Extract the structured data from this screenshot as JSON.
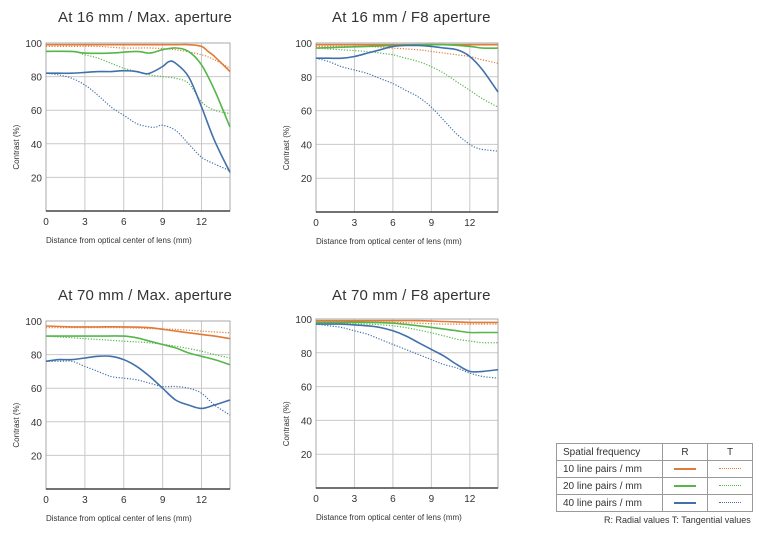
{
  "chart_data": [
    {
      "type": "line",
      "title": "At 16 mm / Max. aperture",
      "xlabel": "Distance from optical center of lens (mm)",
      "ylabel": "Contrast (%)",
      "xlim": [
        0,
        14.2
      ],
      "ylim": [
        0,
        100
      ],
      "xticks": [
        0,
        3,
        6,
        9,
        12
      ],
      "yticks": [
        20,
        40,
        60,
        80,
        100
      ],
      "series": [
        {
          "name": "10 line pairs / mm R",
          "color": "#e07b39",
          "style": "solid",
          "x": [
            0,
            2,
            4,
            6,
            8,
            10,
            11,
            12,
            12.5,
            13,
            14.2
          ],
          "y": [
            99,
            99,
            99,
            99,
            99,
            99,
            99,
            98,
            95,
            92,
            83
          ]
        },
        {
          "name": "10 line pairs / mm T",
          "color": "#e07b39",
          "style": "dotted",
          "x": [
            0,
            2,
            4,
            6,
            8,
            10,
            12,
            13,
            14.2
          ],
          "y": [
            98,
            98,
            98,
            97,
            97,
            96,
            93,
            90,
            85
          ]
        },
        {
          "name": "20 line pairs / mm R",
          "color": "#55b64a",
          "style": "solid",
          "x": [
            0,
            2,
            3,
            5,
            7,
            8,
            9,
            10,
            11,
            12,
            13,
            14.2
          ],
          "y": [
            95,
            95,
            94,
            94,
            95,
            94,
            96,
            97,
            95,
            87,
            72,
            50
          ]
        },
        {
          "name": "20 line pairs / mm T",
          "color": "#55b64a",
          "style": "dotted",
          "x": [
            0,
            2,
            3,
            4,
            5,
            6,
            7,
            8,
            9,
            10,
            11,
            12,
            13,
            14.2
          ],
          "y": [
            95,
            95,
            93,
            91,
            88,
            85,
            83,
            81,
            80,
            79,
            76,
            65,
            60,
            58
          ]
        },
        {
          "name": "40 line pairs / mm R",
          "color": "#4270ab",
          "style": "solid",
          "x": [
            0,
            1,
            2,
            3,
            4,
            5,
            6,
            7,
            7.5,
            8,
            9,
            9.5,
            10,
            11,
            12,
            13,
            14.2
          ],
          "y": [
            82,
            82,
            82,
            82.5,
            83,
            83,
            83.5,
            83,
            82,
            82,
            86,
            89,
            88,
            80,
            62,
            42,
            23
          ]
        },
        {
          "name": "40 line pairs / mm T",
          "color": "#4270ab",
          "style": "dotted",
          "x": [
            0,
            1,
            2,
            3,
            4,
            5,
            6,
            7,
            8,
            8.5,
            9,
            10,
            11,
            12,
            13,
            14.2
          ],
          "y": [
            82,
            81,
            79,
            75,
            69,
            62,
            57,
            52,
            50,
            50,
            51,
            48,
            40,
            32,
            28,
            24
          ]
        }
      ]
    },
    {
      "type": "line",
      "title": "At 16 mm / F8 aperture",
      "xlabel": "Distance from optical center of lens (mm)",
      "ylabel": "Contrast (%)",
      "xlim": [
        0,
        14.2
      ],
      "ylim": [
        0,
        100
      ],
      "xticks": [
        0,
        3,
        6,
        9,
        12
      ],
      "yticks": [
        20,
        40,
        60,
        80,
        100
      ],
      "series": [
        {
          "name": "10 line pairs / mm R",
          "color": "#e07b39",
          "style": "solid",
          "x": [
            0,
            2,
            4,
            6,
            8,
            10,
            12,
            13,
            14.2
          ],
          "y": [
            99,
            99,
            99,
            99,
            99,
            99,
            99,
            99,
            99
          ]
        },
        {
          "name": "10 line pairs / mm T",
          "color": "#e07b39",
          "style": "dotted",
          "x": [
            0,
            2,
            4,
            6,
            8,
            9,
            10,
            11,
            12,
            13,
            14.2
          ],
          "y": [
            98,
            98,
            98,
            97,
            96,
            95,
            94,
            93,
            92,
            90,
            88
          ]
        },
        {
          "name": "20 line pairs / mm R",
          "color": "#55b64a",
          "style": "solid",
          "x": [
            0,
            2,
            4,
            6,
            8,
            10,
            12,
            13,
            14.2
          ],
          "y": [
            97,
            97.5,
            98,
            98.5,
            99,
            99,
            98,
            97,
            97
          ]
        },
        {
          "name": "20 line pairs / mm T",
          "color": "#55b64a",
          "style": "dotted",
          "x": [
            0,
            2,
            4,
            5,
            6,
            7,
            8,
            9,
            10,
            11,
            12,
            13,
            14.2
          ],
          "y": [
            97,
            96,
            95,
            94,
            93,
            91,
            89,
            86,
            82,
            77,
            72,
            67,
            62
          ]
        },
        {
          "name": "40 line pairs / mm R",
          "color": "#4270ab",
          "style": "solid",
          "x": [
            0,
            1,
            2,
            3,
            4,
            5,
            6,
            7,
            8,
            9,
            10,
            11,
            12,
            13,
            14.2
          ],
          "y": [
            91,
            91,
            91,
            92,
            94,
            96,
            98,
            98.5,
            98.5,
            98,
            97,
            96,
            92,
            84,
            71
          ]
        },
        {
          "name": "40 line pairs / mm T",
          "color": "#4270ab",
          "style": "dotted",
          "x": [
            0,
            1,
            2,
            3,
            4,
            5,
            6,
            7,
            8,
            9,
            10,
            11,
            12,
            12.5,
            13,
            14.2
          ],
          "y": [
            91,
            89,
            86,
            84,
            82,
            79,
            76,
            72,
            68,
            62,
            54,
            46,
            40,
            38,
            37,
            36
          ]
        }
      ]
    },
    {
      "type": "line",
      "title": "At 70 mm / Max. aperture",
      "xlabel": "Distance from optical center of lens (mm)",
      "ylabel": "Contrast (%)",
      "xlim": [
        0,
        14.2
      ],
      "ylim": [
        0,
        100
      ],
      "xticks": [
        0,
        3,
        6,
        9,
        12
      ],
      "yticks": [
        20,
        40,
        60,
        80,
        100
      ],
      "series": [
        {
          "name": "10 line pairs / mm R",
          "color": "#e07b39",
          "style": "solid",
          "x": [
            0,
            2,
            4,
            6,
            8,
            10,
            12,
            13,
            14.2
          ],
          "y": [
            97,
            96.5,
            96.5,
            96.5,
            96,
            94,
            92,
            91,
            89.5
          ]
        },
        {
          "name": "10 line pairs / mm T",
          "color": "#e07b39",
          "style": "dotted",
          "x": [
            0,
            2,
            4,
            6,
            8,
            10,
            12,
            13,
            14.2
          ],
          "y": [
            96,
            96,
            96,
            96,
            95.5,
            95,
            94,
            93.5,
            93
          ]
        },
        {
          "name": "20 line pairs / mm R",
          "color": "#55b64a",
          "style": "solid",
          "x": [
            0,
            2,
            4,
            6,
            7,
            8,
            9,
            10,
            11,
            12,
            13,
            14.2
          ],
          "y": [
            91,
            91,
            91,
            91,
            90,
            88,
            86,
            84,
            81,
            79,
            77,
            74
          ]
        },
        {
          "name": "20 line pairs / mm T",
          "color": "#55b64a",
          "style": "dotted",
          "x": [
            0,
            2,
            4,
            6,
            8,
            10,
            12,
            13,
            14.2
          ],
          "y": [
            91,
            90,
            89,
            88,
            87,
            85,
            82,
            80,
            78
          ]
        },
        {
          "name": "40 line pairs / mm R",
          "color": "#4270ab",
          "style": "solid",
          "x": [
            0,
            1,
            2,
            3,
            4,
            5,
            6,
            7,
            8,
            9,
            10,
            11,
            12,
            13,
            14.2
          ],
          "y": [
            76,
            77,
            77,
            78,
            79,
            79,
            77,
            73,
            67,
            60,
            53,
            50,
            48,
            50,
            53
          ]
        },
        {
          "name": "40 line pairs / mm T",
          "color": "#4270ab",
          "style": "dotted",
          "x": [
            0,
            1,
            2,
            3,
            4,
            5,
            6,
            7,
            8,
            9,
            10,
            11,
            12,
            13,
            14.2
          ],
          "y": [
            76,
            76,
            76,
            73,
            70,
            67,
            66,
            65,
            63,
            61,
            61,
            60,
            57,
            50,
            44
          ]
        }
      ]
    },
    {
      "type": "line",
      "title": "At 70 mm / F8 aperture",
      "xlabel": "Distance from optical center of lens (mm)",
      "ylabel": "Contrast (%)",
      "xlim": [
        0,
        14.2
      ],
      "ylim": [
        0,
        100
      ],
      "xticks": [
        0,
        3,
        6,
        9,
        12
      ],
      "yticks": [
        20,
        40,
        60,
        80,
        100
      ],
      "series": [
        {
          "name": "10 line pairs / mm R",
          "color": "#e07b39",
          "style": "solid",
          "x": [
            0,
            2,
            4,
            6,
            8,
            10,
            12,
            13,
            14.2
          ],
          "y": [
            99,
            99,
            99,
            99,
            99,
            98.5,
            98,
            98,
            98
          ]
        },
        {
          "name": "10 line pairs / mm T",
          "color": "#e07b39",
          "style": "dotted",
          "x": [
            0,
            2,
            4,
            6,
            8,
            10,
            12,
            13,
            14.2
          ],
          "y": [
            99,
            98.5,
            98,
            98,
            97.5,
            97,
            97,
            97,
            97
          ]
        },
        {
          "name": "20 line pairs / mm R",
          "color": "#55b64a",
          "style": "solid",
          "x": [
            0,
            2,
            4,
            6,
            8,
            10,
            11,
            12,
            13,
            14.2
          ],
          "y": [
            98,
            98,
            98,
            97.5,
            96,
            94,
            93,
            92,
            92,
            92
          ]
        },
        {
          "name": "20 line pairs / mm T",
          "color": "#55b64a",
          "style": "dotted",
          "x": [
            0,
            2,
            4,
            6,
            8,
            10,
            11,
            12,
            13,
            14.2
          ],
          "y": [
            98,
            97.5,
            97,
            96,
            93.5,
            90,
            88,
            87,
            86,
            86
          ]
        },
        {
          "name": "40 line pairs / mm R",
          "color": "#4270ab",
          "style": "solid",
          "x": [
            0,
            1,
            2,
            3,
            4,
            5,
            6,
            7,
            8,
            9,
            10,
            11,
            12,
            13,
            14.2
          ],
          "y": [
            97,
            97,
            97,
            96.5,
            96,
            95,
            93,
            90,
            86,
            82,
            78,
            73,
            69,
            69,
            70
          ]
        },
        {
          "name": "40 line pairs / mm T",
          "color": "#4270ab",
          "style": "dotted",
          "x": [
            0,
            1,
            2,
            3,
            4,
            5,
            6,
            7,
            8,
            9,
            10,
            11,
            12,
            13,
            14.2
          ],
          "y": [
            97,
            96,
            95,
            93,
            91,
            88,
            85,
            82,
            79,
            76,
            73,
            71,
            68,
            66,
            65
          ]
        }
      ]
    }
  ],
  "legend": {
    "header": [
      "Spatial frequency",
      "R",
      "T"
    ],
    "rows": [
      {
        "label": "10 line pairs / mm",
        "color": "#e07b39"
      },
      {
        "label": "20 line pairs / mm",
        "color": "#55b64a"
      },
      {
        "label": "40 line pairs / mm",
        "color": "#4270ab"
      }
    ],
    "note": "R: Radial values  T: Tangential values"
  }
}
